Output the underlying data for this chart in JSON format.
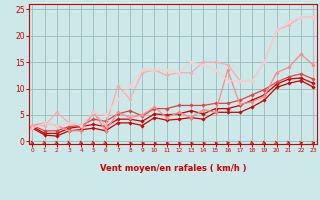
{
  "title": "",
  "xlabel": "Vent moyen/en rafales ( km/h )",
  "background_color": "#cce8e8",
  "grid_color": "#99bbbb",
  "x_ticks": [
    0,
    1,
    2,
    3,
    4,
    5,
    6,
    7,
    8,
    9,
    10,
    11,
    12,
    13,
    14,
    15,
    16,
    17,
    18,
    19,
    20,
    21,
    22,
    23
  ],
  "ylim": [
    -0.5,
    26
  ],
  "xlim": [
    -0.3,
    23.3
  ],
  "yticks": [
    0,
    5,
    10,
    15,
    20,
    25
  ],
  "series": [
    {
      "x": [
        0,
        1,
        2,
        3,
        4,
        5,
        6,
        7,
        8,
        9,
        10,
        11,
        12,
        13,
        14,
        15,
        16,
        17,
        18,
        19,
        20,
        21,
        22,
        23
      ],
      "y": [
        2.5,
        1.2,
        1.0,
        2.0,
        2.2,
        2.5,
        2.0,
        3.5,
        3.5,
        3.0,
        4.5,
        4.0,
        4.2,
        4.5,
        4.2,
        5.5,
        5.5,
        5.5,
        6.5,
        7.8,
        10.2,
        11.0,
        11.5,
        10.3
      ],
      "color": "#cc0000",
      "lw": 0.9,
      "marker": "D",
      "ms": 1.8
    },
    {
      "x": [
        0,
        1,
        2,
        3,
        4,
        5,
        6,
        7,
        8,
        9,
        10,
        11,
        12,
        13,
        14,
        15,
        16,
        17,
        18,
        19,
        20,
        21,
        22,
        23
      ],
      "y": [
        2.8,
        1.5,
        1.5,
        2.5,
        2.8,
        3.2,
        2.8,
        4.2,
        4.2,
        3.8,
        5.2,
        5.0,
        5.2,
        5.8,
        5.2,
        6.2,
        6.2,
        6.8,
        7.8,
        8.8,
        10.8,
        11.8,
        12.0,
        11.0
      ],
      "color": "#cc0000",
      "lw": 0.9,
      "marker": "D",
      "ms": 1.8
    },
    {
      "x": [
        0,
        1,
        2,
        3,
        4,
        5,
        6,
        7,
        8,
        9,
        10,
        11,
        12,
        13,
        14,
        15,
        16,
        17,
        18,
        19,
        20,
        21,
        22,
        23
      ],
      "y": [
        3.0,
        2.0,
        2.0,
        2.8,
        3.0,
        4.2,
        3.8,
        5.2,
        5.8,
        4.8,
        6.2,
        6.2,
        6.8,
        6.8,
        6.8,
        7.2,
        7.2,
        7.8,
        8.8,
        9.8,
        11.2,
        12.2,
        12.8,
        11.8
      ],
      "color": "#dd4444",
      "lw": 0.9,
      "marker": "D",
      "ms": 1.8
    },
    {
      "x": [
        0,
        1,
        2,
        3,
        4,
        5,
        6,
        7,
        8,
        9,
        10,
        11,
        12,
        13,
        14,
        15,
        16,
        17,
        18,
        19,
        20,
        21,
        22,
        23
      ],
      "y": [
        3.0,
        3.5,
        3.0,
        2.0,
        2.0,
        5.5,
        2.0,
        5.5,
        4.5,
        5.0,
        6.5,
        4.5,
        5.5,
        4.5,
        6.0,
        5.5,
        13.5,
        7.0,
        7.5,
        8.5,
        13.0,
        14.0,
        16.5,
        14.5
      ],
      "color": "#ff8888",
      "lw": 0.9,
      "marker": "D",
      "ms": 1.8
    },
    {
      "x": [
        0,
        1,
        2,
        3,
        4,
        5,
        6,
        7,
        8,
        9,
        10,
        11,
        12,
        13,
        14,
        15,
        16,
        17,
        18,
        19,
        20,
        21,
        22,
        23
      ],
      "y": [
        3.0,
        3.0,
        5.5,
        3.5,
        3.0,
        5.5,
        3.0,
        10.5,
        8.0,
        13.0,
        13.5,
        12.5,
        13.0,
        13.0,
        15.0,
        15.0,
        14.5,
        11.5,
        11.5,
        15.0,
        21.0,
        22.0,
        23.5,
        23.5
      ],
      "color": "#ffaaaa",
      "lw": 0.9,
      "marker": "D",
      "ms": 1.8
    },
    {
      "x": [
        0,
        1,
        2,
        3,
        4,
        5,
        6,
        7,
        8,
        9,
        10,
        11,
        12,
        13,
        14,
        15,
        16,
        17,
        18,
        19,
        20,
        21,
        22,
        23
      ],
      "y": [
        2.5,
        3.5,
        3.0,
        3.5,
        3.0,
        5.5,
        5.0,
        8.0,
        10.5,
        13.5,
        13.5,
        13.5,
        13.0,
        15.0,
        14.5,
        13.5,
        11.5,
        11.5,
        11.5,
        15.0,
        21.0,
        22.5,
        23.5,
        23.5
      ],
      "color": "#ffcccc",
      "lw": 0.9,
      "marker": "D",
      "ms": 1.8
    }
  ],
  "arrow_angles": [
    45,
    45,
    45,
    45,
    45,
    45,
    45,
    180,
    210,
    210,
    210,
    210,
    210,
    210,
    210,
    210,
    90,
    45,
    45,
    45,
    45,
    45,
    90,
    90
  ],
  "xlabel_color": "#cc0000",
  "tick_color": "#cc0000",
  "axis_color": "#cc0000",
  "arrow_color": "#cc0000"
}
